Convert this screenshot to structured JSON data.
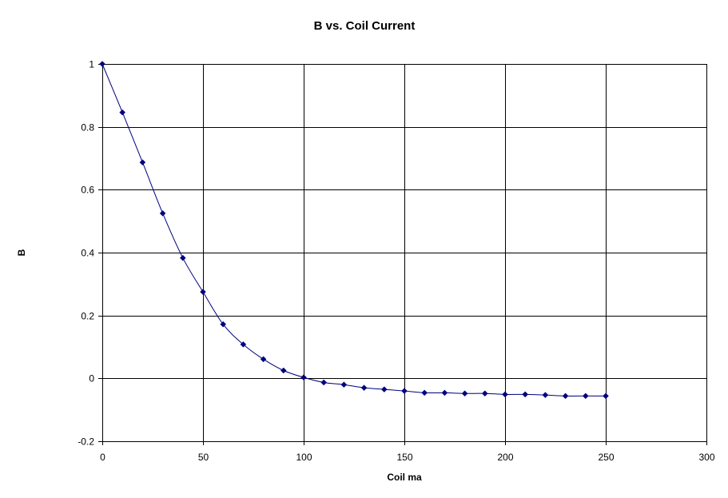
{
  "chart_data": {
    "type": "line",
    "title": "B vs. Coil Current",
    "xlabel": "Coil ma",
    "ylabel": "B",
    "xlim": [
      0,
      300
    ],
    "ylim": [
      -0.2,
      1
    ],
    "xticks": [
      0,
      50,
      100,
      150,
      200,
      250,
      300
    ],
    "yticks": [
      -0.2,
      0,
      0.2,
      0.4,
      0.6,
      0.8,
      1
    ],
    "xtick_labels": [
      "0",
      "50",
      "100",
      "150",
      "200",
      "250",
      "300"
    ],
    "ytick_labels": [
      "-0.2",
      "0",
      "0.2",
      "0.4",
      "0.6",
      "0.8",
      "1"
    ],
    "grid": true,
    "series": [
      {
        "color": "#000080",
        "marker": "diamond",
        "x": [
          0,
          10,
          20,
          30,
          40,
          50,
          60,
          70,
          80,
          90,
          100,
          110,
          120,
          130,
          140,
          150,
          160,
          170,
          180,
          190,
          200,
          210,
          220,
          230,
          240,
          250
        ],
        "y": [
          1.0,
          0.846,
          0.687,
          0.525,
          0.383,
          0.275,
          0.172,
          0.108,
          0.061,
          0.025,
          0.003,
          -0.013,
          -0.02,
          -0.03,
          -0.035,
          -0.04,
          -0.046,
          -0.046,
          -0.048,
          -0.048,
          -0.051,
          -0.051,
          -0.053,
          -0.056,
          -0.056,
          -0.056
        ]
      }
    ]
  }
}
